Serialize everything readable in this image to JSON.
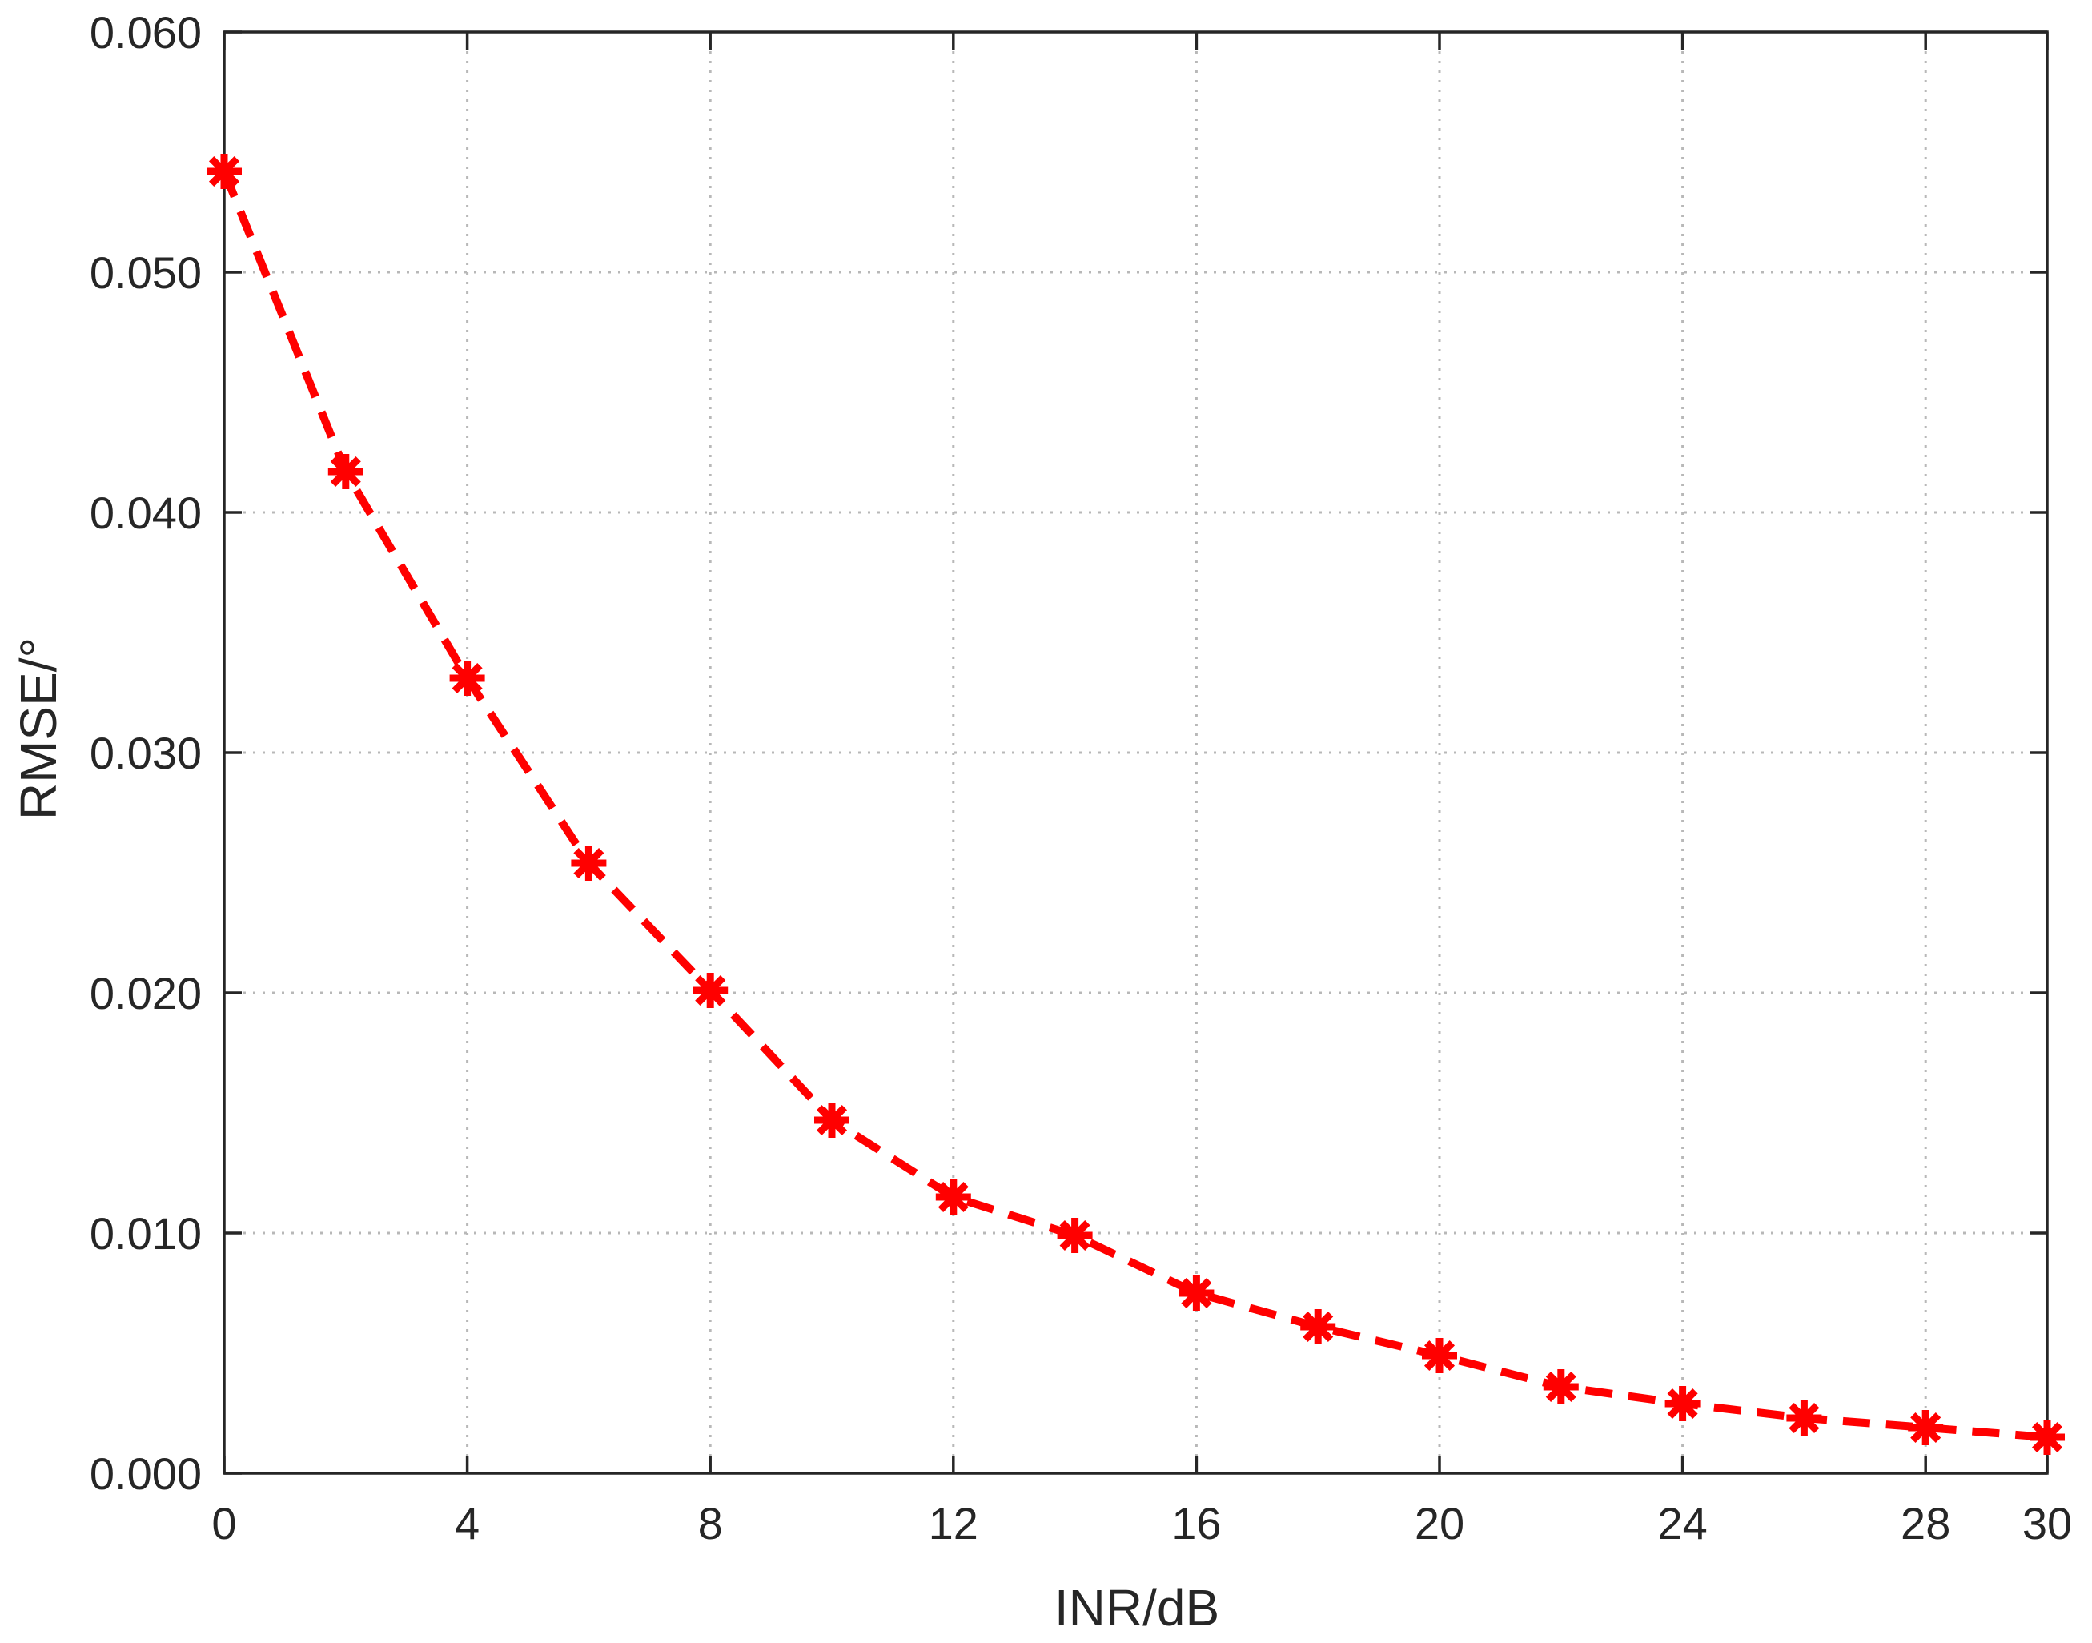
{
  "chart_data": {
    "type": "line",
    "title": "",
    "xlabel": "INR/dB",
    "ylabel": "RMSE/°",
    "xlim": [
      0,
      30
    ],
    "ylim": [
      0,
      0.06
    ],
    "grid": true,
    "legend": "none",
    "x_ticks": [
      {
        "value": 0,
        "label": "0"
      },
      {
        "value": 4,
        "label": "4"
      },
      {
        "value": 8,
        "label": "8"
      },
      {
        "value": 12,
        "label": "12"
      },
      {
        "value": 16,
        "label": "16"
      },
      {
        "value": 20,
        "label": "20"
      },
      {
        "value": 24,
        "label": "24"
      },
      {
        "value": 28,
        "label": "28"
      },
      {
        "value": 30,
        "label": "30"
      }
    ],
    "y_ticks": [
      {
        "value": 0.0,
        "label": "0.000"
      },
      {
        "value": 0.01,
        "label": "0.010"
      },
      {
        "value": 0.02,
        "label": "0.020"
      },
      {
        "value": 0.03,
        "label": "0.030"
      },
      {
        "value": 0.04,
        "label": "0.040"
      },
      {
        "value": 0.05,
        "label": "0.050"
      },
      {
        "value": 0.06,
        "label": "0.060"
      }
    ],
    "series": [
      {
        "color": "#ff0000",
        "line_style": "dashed",
        "marker": "asterisk",
        "x": [
          0,
          2,
          4,
          6,
          8,
          10,
          12,
          14,
          16,
          18,
          20,
          22,
          24,
          26,
          28,
          30
        ],
        "y": [
          0.0542,
          0.0417,
          0.0331,
          0.0254,
          0.0201,
          0.0147,
          0.0115,
          0.0099,
          0.0075,
          0.0061,
          0.0049,
          0.0036,
          0.0029,
          0.0023,
          0.0019,
          0.0015
        ]
      }
    ]
  }
}
